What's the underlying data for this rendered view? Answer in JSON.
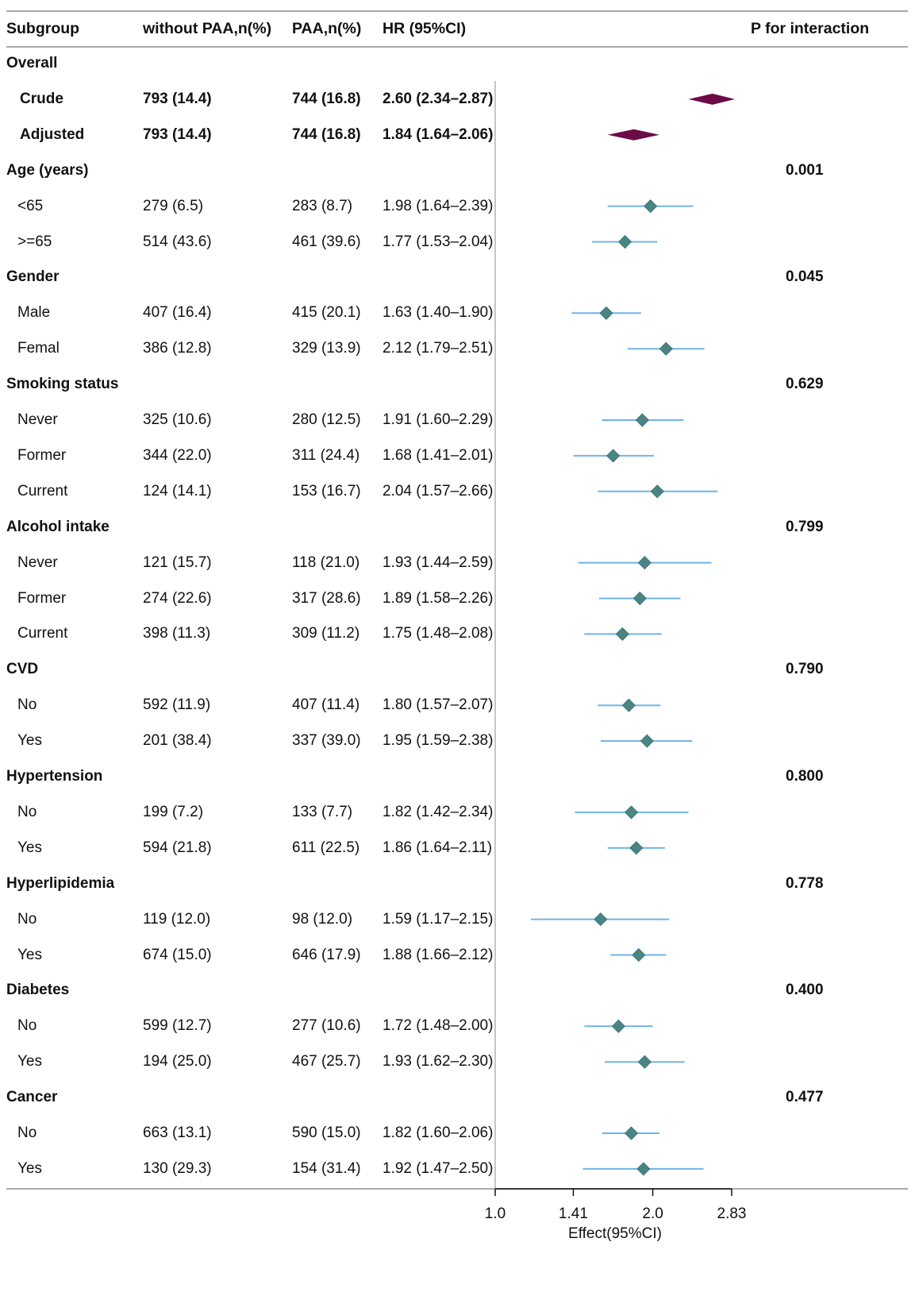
{
  "headers": {
    "subgroup": "Subgroup",
    "without": "without PAA,n(%)",
    "paa": "PAA,n(%)",
    "hr": "HR (95%CI)",
    "p": "P for interaction"
  },
  "colors": {
    "summary_diamond": "#6b0b47",
    "point_diamond": "#4a8585",
    "ci_line": "#6fb4e8",
    "axis": "#111111",
    "ref_line": "#b3b3b3",
    "frame_line": "#a9a9a9"
  },
  "rows": [
    {
      "kind": "group",
      "label": "Overall",
      "p": ""
    },
    {
      "kind": "summary",
      "label": "Crude",
      "without": "793 (14.4)",
      "paa": "744 (16.8)",
      "hr_text": "2.60 (2.34–2.87)"
    },
    {
      "kind": "summary",
      "label": "Adjusted",
      "without": "793 (14.4)",
      "paa": "744 (16.8)",
      "hr_text": "1.84 (1.64–2.06)"
    },
    {
      "kind": "group",
      "label": "Age (years)",
      "p": "0.001"
    },
    {
      "kind": "sub",
      "label": "<65",
      "without": "279 (6.5)",
      "paa": "283 (8.7)",
      "hr_text": "1.98 (1.64–2.39)"
    },
    {
      "kind": "sub",
      "label": ">=65",
      "without": "514 (43.6)",
      "paa": "461 (39.6)",
      "hr_text": "1.77 (1.53–2.04)"
    },
    {
      "kind": "group",
      "label": "Gender",
      "p": "0.045"
    },
    {
      "kind": "sub",
      "label": "Male",
      "without": "407 (16.4)",
      "paa": "415 (20.1)",
      "hr_text": "1.63 (1.40–1.90)"
    },
    {
      "kind": "sub",
      "label": "Femal",
      "without": "386 (12.8)",
      "paa": "329 (13.9)",
      "hr_text": "2.12 (1.79–2.51)"
    },
    {
      "kind": "group",
      "label": "Smoking status",
      "p": "0.629"
    },
    {
      "kind": "sub",
      "label": "Never",
      "without": "325 (10.6)",
      "paa": "280 (12.5)",
      "hr_text": "1.91 (1.60–2.29)"
    },
    {
      "kind": "sub",
      "label": "Former",
      "without": "344 (22.0)",
      "paa": "311 (24.4)",
      "hr_text": "1.68 (1.41–2.01)"
    },
    {
      "kind": "sub",
      "label": "Current",
      "without": "124 (14.1)",
      "paa": "153 (16.7)",
      "hr_text": "2.04 (1.57–2.66)"
    },
    {
      "kind": "group",
      "label": "Alcohol intake",
      "p": "0.799"
    },
    {
      "kind": "sub",
      "label": "Never",
      "without": "121 (15.7)",
      "paa": "118 (21.0)",
      "hr_text": "1.93 (1.44–2.59)"
    },
    {
      "kind": "sub",
      "label": "Former",
      "without": "274 (22.6)",
      "paa": "317 (28.6)",
      "hr_text": "1.89 (1.58–2.26)"
    },
    {
      "kind": "sub",
      "label": "Current",
      "without": "398 (11.3)",
      "paa": "309 (11.2)",
      "hr_text": "1.75 (1.48–2.08)"
    },
    {
      "kind": "group",
      "label": "CVD",
      "p": "0.790"
    },
    {
      "kind": "sub",
      "label": "No",
      "without": "592 (11.9)",
      "paa": "407 (11.4)",
      "hr_text": "1.80 (1.57–2.07)"
    },
    {
      "kind": "sub",
      "label": "Yes",
      "without": "201 (38.4)",
      "paa": "337 (39.0)",
      "hr_text": "1.95 (1.59–2.38)"
    },
    {
      "kind": "group",
      "label": "Hypertension",
      "p": "0.800"
    },
    {
      "kind": "sub",
      "label": "No",
      "without": "199 (7.2)",
      "paa": "133 (7.7)",
      "hr_text": "1.82 (1.42–2.34)"
    },
    {
      "kind": "sub",
      "label": "Yes",
      "without": "594 (21.8)",
      "paa": "611 (22.5)",
      "hr_text": "1.86 (1.64–2.11)"
    },
    {
      "kind": "group",
      "label": "Hyperlipidemia",
      "p": "0.778"
    },
    {
      "kind": "sub",
      "label": "No",
      "without": "119 (12.0)",
      "paa": "98 (12.0)",
      "hr_text": "1.59 (1.17–2.15)"
    },
    {
      "kind": "sub",
      "label": "Yes",
      "without": "674 (15.0)",
      "paa": "646 (17.9)",
      "hr_text": "1.88 (1.66–2.12)"
    },
    {
      "kind": "group",
      "label": "Diabetes",
      "p": "0.400"
    },
    {
      "kind": "sub",
      "label": "No",
      "without": "599 (12.7)",
      "paa": "277 (10.6)",
      "hr_text": "1.72 (1.48–2.00)"
    },
    {
      "kind": "sub",
      "label": "Yes",
      "without": "194 (25.0)",
      "paa": "467 (25.7)",
      "hr_text": "1.93 (1.62–2.30)"
    },
    {
      "kind": "group",
      "label": "Cancer",
      "p": "0.477"
    },
    {
      "kind": "sub",
      "label": "No",
      "without": "663 (13.1)",
      "paa": "590 (15.0)",
      "hr_text": "1.82 (1.60–2.06)"
    },
    {
      "kind": "sub",
      "label": "Yes",
      "without": "130 (29.3)",
      "paa": "154 (31.4)",
      "hr_text": "1.92 (1.47–2.50)"
    }
  ],
  "chart_data": {
    "type": "forest",
    "x_scale": "log2",
    "xlim": [
      1.0,
      2.83
    ],
    "reference_line": 1.0,
    "xticks": [
      1.0,
      1.41,
      2.0,
      2.83
    ],
    "xtick_labels": [
      "1.0",
      "1.41",
      "2.0",
      "2.83"
    ],
    "xlabel": "Effect(95%CI)",
    "points": [
      {
        "row": 1,
        "label": "Crude",
        "hr": 2.6,
        "lo": 2.34,
        "hi": 2.87,
        "style": "summary"
      },
      {
        "row": 2,
        "label": "Adjusted",
        "hr": 1.84,
        "lo": 1.64,
        "hi": 2.06,
        "style": "summary"
      },
      {
        "row": 4,
        "label": "<65",
        "hr": 1.98,
        "lo": 1.64,
        "hi": 2.39
      },
      {
        "row": 5,
        "label": ">=65",
        "hr": 1.77,
        "lo": 1.53,
        "hi": 2.04
      },
      {
        "row": 7,
        "label": "Male",
        "hr": 1.63,
        "lo": 1.4,
        "hi": 1.9
      },
      {
        "row": 8,
        "label": "Femal",
        "hr": 2.12,
        "lo": 1.79,
        "hi": 2.51
      },
      {
        "row": 10,
        "label": "Never (smoking)",
        "hr": 1.91,
        "lo": 1.6,
        "hi": 2.29
      },
      {
        "row": 11,
        "label": "Former (smoking)",
        "hr": 1.68,
        "lo": 1.41,
        "hi": 2.01
      },
      {
        "row": 12,
        "label": "Current (smoking)",
        "hr": 2.04,
        "lo": 1.57,
        "hi": 2.66
      },
      {
        "row": 14,
        "label": "Never (alcohol)",
        "hr": 1.93,
        "lo": 1.44,
        "hi": 2.59
      },
      {
        "row": 15,
        "label": "Former (alcohol)",
        "hr": 1.89,
        "lo": 1.58,
        "hi": 2.26
      },
      {
        "row": 16,
        "label": "Current (alcohol)",
        "hr": 1.75,
        "lo": 1.48,
        "hi": 2.08
      },
      {
        "row": 18,
        "label": "No (CVD)",
        "hr": 1.8,
        "lo": 1.57,
        "hi": 2.07
      },
      {
        "row": 19,
        "label": "Yes (CVD)",
        "hr": 1.95,
        "lo": 1.59,
        "hi": 2.38
      },
      {
        "row": 21,
        "label": "No (hypertension)",
        "hr": 1.82,
        "lo": 1.42,
        "hi": 2.34
      },
      {
        "row": 22,
        "label": "Yes (hypertension)",
        "hr": 1.86,
        "lo": 1.64,
        "hi": 2.11
      },
      {
        "row": 24,
        "label": "No (hyperlipidemia)",
        "hr": 1.59,
        "lo": 1.17,
        "hi": 2.15
      },
      {
        "row": 25,
        "label": "Yes (hyperlipidemia)",
        "hr": 1.88,
        "lo": 1.66,
        "hi": 2.12
      },
      {
        "row": 27,
        "label": "No (diabetes)",
        "hr": 1.72,
        "lo": 1.48,
        "hi": 2.0
      },
      {
        "row": 28,
        "label": "Yes (diabetes)",
        "hr": 1.93,
        "lo": 1.62,
        "hi": 2.3
      },
      {
        "row": 30,
        "label": "No (cancer)",
        "hr": 1.82,
        "lo": 1.6,
        "hi": 2.06
      },
      {
        "row": 31,
        "label": "Yes (cancer)",
        "hr": 1.92,
        "lo": 1.47,
        "hi": 2.5
      }
    ]
  }
}
